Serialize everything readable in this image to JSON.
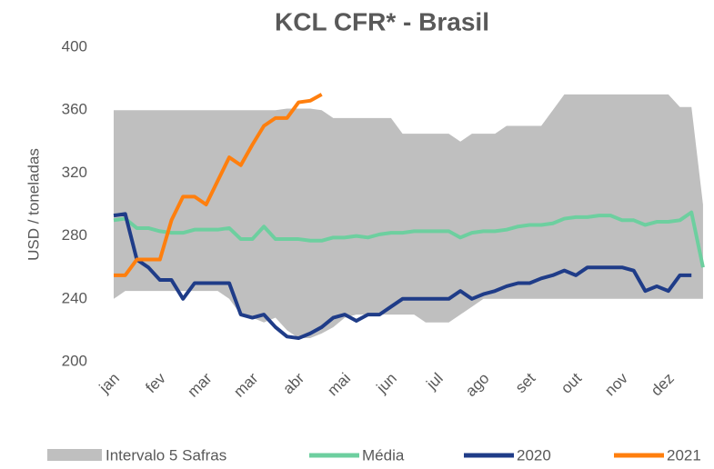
{
  "chart_data": {
    "type": "line",
    "title": "KCL CFR* - Brasil",
    "y_label": "USD / toneladas",
    "x": [
      0,
      0.25,
      0.5,
      0.75,
      1,
      1.25,
      1.5,
      1.75,
      2,
      2.25,
      2.5,
      2.75,
      3,
      3.25,
      3.5,
      3.75,
      4,
      4.25,
      4.5,
      4.75,
      5,
      5.25,
      5.5,
      5.75,
      6,
      6.25,
      6.5,
      6.75,
      7,
      7.25,
      7.5,
      7.75,
      8,
      8.25,
      8.5,
      8.75,
      9,
      9.25,
      9.5,
      9.75,
      10,
      10.25,
      10.5,
      10.75,
      11,
      11.25,
      11.5,
      11.75,
      12,
      12.25,
      12.5,
      12.75
    ],
    "xlim": [
      0,
      12.85
    ],
    "xticks": [
      {
        "value": 0,
        "label": "jan"
      },
      {
        "value": 1,
        "label": "fev"
      },
      {
        "value": 2,
        "label": "mar"
      },
      {
        "value": 3,
        "label": "mar"
      },
      {
        "value": 4,
        "label": "abr"
      },
      {
        "value": 5,
        "label": "mai"
      },
      {
        "value": 6,
        "label": "jun"
      },
      {
        "value": 7,
        "label": "jul"
      },
      {
        "value": 8,
        "label": "ago"
      },
      {
        "value": 9,
        "label": "set"
      },
      {
        "value": 10,
        "label": "out"
      },
      {
        "value": 11,
        "label": "nov"
      },
      {
        "value": 12,
        "label": "dez"
      }
    ],
    "ylim": [
      200,
      400
    ],
    "yticks": [
      200,
      240,
      280,
      320,
      360,
      400
    ],
    "grid": false,
    "legend": "bottom",
    "series": [
      {
        "name": "Intervalo 5 Safras",
        "type": "range",
        "color": "#bfbfbf",
        "lower": [
          240,
          245,
          245,
          245,
          245,
          245,
          245,
          245,
          245,
          245,
          240,
          230,
          228,
          225,
          228,
          220,
          215,
          215,
          218,
          222,
          228,
          230,
          230,
          230,
          230,
          230,
          230,
          225,
          225,
          225,
          230,
          235,
          240,
          240,
          240,
          240,
          240,
          240,
          240,
          240,
          240,
          240,
          240,
          240,
          240,
          240,
          240,
          240,
          240,
          240,
          240,
          240
        ],
        "values": [
          360,
          360,
          360,
          360,
          360,
          360,
          360,
          360,
          360,
          360,
          360,
          360,
          360,
          360,
          360,
          361,
          361,
          361,
          360,
          355,
          355,
          355,
          355,
          355,
          355,
          345,
          345,
          345,
          345,
          345,
          340,
          345,
          345,
          345,
          350,
          350,
          350,
          350,
          360,
          370,
          370,
          370,
          370,
          370,
          370,
          370,
          370,
          370,
          370,
          362,
          362,
          300
        ]
      },
      {
        "name": "Média",
        "color": "#6dcf9f",
        "values": [
          290,
          291,
          285,
          285,
          283,
          282,
          282,
          284,
          284,
          284,
          285,
          278,
          278,
          286,
          278,
          278,
          278,
          277,
          277,
          279,
          279,
          280,
          279,
          281,
          282,
          282,
          283,
          283,
          283,
          283,
          279,
          282,
          283,
          283,
          284,
          286,
          287,
          287,
          288,
          291,
          292,
          292,
          293,
          293,
          290,
          290,
          287,
          289,
          289,
          290,
          295,
          260
        ]
      },
      {
        "name": "2020",
        "color": "#1f3c88",
        "values": [
          293,
          294,
          265,
          260,
          252,
          252,
          240,
          250,
          250,
          250,
          250,
          230,
          228,
          230,
          222,
          216,
          215,
          218,
          222,
          228,
          230,
          226,
          230,
          230,
          235,
          240,
          240,
          240,
          240,
          240,
          245,
          240,
          243,
          245,
          248,
          250,
          250,
          253,
          255,
          258,
          255,
          260,
          260,
          260,
          260,
          258,
          245,
          248,
          245,
          255,
          255,
          null
        ]
      },
      {
        "name": "2021",
        "color": "#ff7f0e",
        "values": [
          255,
          255,
          265,
          265,
          265,
          290,
          305,
          305,
          300,
          315,
          330,
          325,
          338,
          350,
          355,
          355,
          365,
          366,
          370,
          null,
          null,
          null,
          null,
          null,
          null,
          null,
          null,
          null,
          null,
          null,
          null,
          null,
          null,
          null,
          null,
          null,
          null,
          null,
          null,
          null,
          null,
          null,
          null,
          null,
          null,
          null,
          null,
          null,
          null,
          null,
          null,
          null
        ]
      }
    ]
  }
}
